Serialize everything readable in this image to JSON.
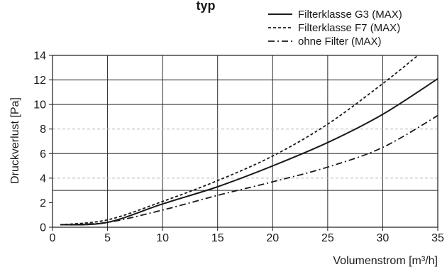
{
  "chart_data": {
    "type": "line",
    "title": "typ",
    "xlabel": "Volumenstrom [m³/h]",
    "ylabel": "Druckverlust [Pa]",
    "xlim": [
      0,
      35
    ],
    "ylim": [
      0,
      14
    ],
    "x_ticks": [
      0,
      5,
      10,
      15,
      20,
      25,
      30,
      35
    ],
    "y_ticks": [
      0,
      2,
      4,
      6,
      8,
      10,
      12,
      14
    ],
    "y_solid_gridlines": [
      3,
      6,
      10,
      12,
      14
    ],
    "y_dashed_gridlines": [
      4,
      8
    ],
    "grid": true,
    "legend_position": "top-right, above plot",
    "series": [
      {
        "name": "Filterklasse G3 (MAX)",
        "style": "solid",
        "x": [
          0.7,
          5,
          10,
          15,
          20,
          25,
          30,
          35
        ],
        "y": [
          0.2,
          0.4,
          1.9,
          3.3,
          5.0,
          6.9,
          9.2,
          12.1
        ]
      },
      {
        "name": "Filterklasse F7 (MAX)",
        "style": "dashed",
        "x": [
          0.7,
          5,
          10,
          15,
          20,
          25,
          30,
          33.2
        ],
        "y": [
          0.2,
          0.6,
          2.1,
          3.8,
          5.8,
          8.4,
          11.7,
          14.0
        ]
      },
      {
        "name": "ohne Filter (MAX)",
        "style": "dash-dot",
        "x": [
          0.7,
          5,
          10,
          15,
          20,
          25,
          30,
          35
        ],
        "y": [
          0.2,
          0.4,
          1.4,
          2.6,
          3.7,
          4.9,
          6.5,
          9.1
        ]
      }
    ]
  }
}
